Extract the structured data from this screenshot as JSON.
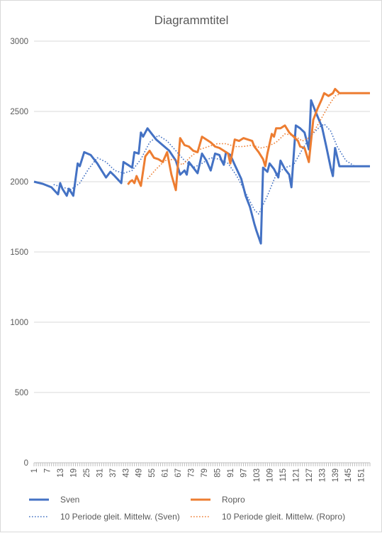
{
  "chart_data": {
    "type": "line",
    "title": "Diagrammtitel",
    "ylim": [
      0,
      3000
    ],
    "yticks": [
      0,
      500,
      1000,
      1500,
      2000,
      2500,
      3000
    ],
    "x_tick_labels": [
      "1",
      "7",
      "13",
      "19",
      "25",
      "31",
      "37",
      "43",
      "49",
      "55",
      "61",
      "67",
      "73",
      "79",
      "85",
      "91",
      "97",
      "103",
      "109",
      "115",
      "121",
      "127",
      "133",
      "139",
      "145",
      "151"
    ],
    "grid": true,
    "legend_position": "bottom",
    "series": [
      {
        "name": "Sven",
        "color": "#4472c4",
        "style": "solid",
        "points": [
          [
            1,
            2000
          ],
          [
            5,
            1985
          ],
          [
            9,
            1960
          ],
          [
            12,
            1910
          ],
          [
            13,
            1990
          ],
          [
            14,
            1950
          ],
          [
            16,
            1900
          ],
          [
            17,
            1950
          ],
          [
            19,
            1900
          ],
          [
            21,
            2130
          ],
          [
            22,
            2110
          ],
          [
            24,
            2210
          ],
          [
            27,
            2190
          ],
          [
            30,
            2130
          ],
          [
            32,
            2080
          ],
          [
            34,
            2030
          ],
          [
            36,
            2070
          ],
          [
            38,
            2040
          ],
          [
            41,
            1990
          ],
          [
            42,
            2140
          ],
          [
            44,
            2120
          ],
          [
            46,
            2100
          ],
          [
            47,
            2210
          ],
          [
            49,
            2200
          ],
          [
            50,
            2350
          ],
          [
            51,
            2320
          ],
          [
            53,
            2380
          ],
          [
            55,
            2340
          ],
          [
            57,
            2300
          ],
          [
            60,
            2260
          ],
          [
            63,
            2220
          ],
          [
            66,
            2150
          ],
          [
            68,
            2050
          ],
          [
            70,
            2080
          ],
          [
            71,
            2050
          ],
          [
            72,
            2140
          ],
          [
            74,
            2100
          ],
          [
            76,
            2060
          ],
          [
            78,
            2200
          ],
          [
            80,
            2150
          ],
          [
            82,
            2080
          ],
          [
            84,
            2200
          ],
          [
            86,
            2190
          ],
          [
            87,
            2150
          ],
          [
            88,
            2120
          ],
          [
            89,
            2210
          ],
          [
            91,
            2190
          ],
          [
            93,
            2120
          ],
          [
            96,
            2020
          ],
          [
            98,
            1900
          ],
          [
            100,
            1820
          ],
          [
            102,
            1700
          ],
          [
            103,
            1650
          ],
          [
            105,
            1560
          ],
          [
            106,
            2100
          ],
          [
            108,
            2070
          ],
          [
            109,
            2130
          ],
          [
            111,
            2090
          ],
          [
            113,
            2030
          ],
          [
            114,
            2150
          ],
          [
            116,
            2090
          ],
          [
            118,
            2050
          ],
          [
            119,
            1960
          ],
          [
            121,
            2400
          ],
          [
            123,
            2380
          ],
          [
            125,
            2350
          ],
          [
            127,
            2230
          ],
          [
            128,
            2580
          ],
          [
            130,
            2500
          ],
          [
            133,
            2390
          ],
          [
            135,
            2250
          ],
          [
            137,
            2100
          ],
          [
            138,
            2040
          ],
          [
            139,
            2240
          ],
          [
            141,
            2110
          ],
          [
            145,
            2110
          ],
          [
            150,
            2110
          ],
          [
            155,
            2110
          ]
        ]
      },
      {
        "name": "Ropro",
        "color": "#ed7d31",
        "style": "solid",
        "points": [
          [
            44,
            1980
          ],
          [
            45,
            2000
          ],
          [
            46,
            2010
          ],
          [
            47,
            1990
          ],
          [
            48,
            2040
          ],
          [
            50,
            1970
          ],
          [
            52,
            2180
          ],
          [
            54,
            2220
          ],
          [
            56,
            2170
          ],
          [
            58,
            2160
          ],
          [
            60,
            2140
          ],
          [
            62,
            2210
          ],
          [
            64,
            2050
          ],
          [
            66,
            1940
          ],
          [
            68,
            2310
          ],
          [
            70,
            2260
          ],
          [
            72,
            2250
          ],
          [
            74,
            2220
          ],
          [
            76,
            2210
          ],
          [
            78,
            2320
          ],
          [
            80,
            2300
          ],
          [
            82,
            2280
          ],
          [
            84,
            2250
          ],
          [
            86,
            2240
          ],
          [
            88,
            2220
          ],
          [
            90,
            2200
          ],
          [
            91,
            2130
          ],
          [
            93,
            2300
          ],
          [
            95,
            2290
          ],
          [
            97,
            2310
          ],
          [
            99,
            2300
          ],
          [
            101,
            2290
          ],
          [
            102,
            2250
          ],
          [
            104,
            2210
          ],
          [
            106,
            2160
          ],
          [
            107,
            2110
          ],
          [
            108,
            2200
          ],
          [
            110,
            2340
          ],
          [
            111,
            2320
          ],
          [
            112,
            2380
          ],
          [
            114,
            2380
          ],
          [
            116,
            2400
          ],
          [
            118,
            2350
          ],
          [
            120,
            2320
          ],
          [
            122,
            2290
          ],
          [
            123,
            2250
          ],
          [
            125,
            2240
          ],
          [
            127,
            2140
          ],
          [
            129,
            2440
          ],
          [
            131,
            2520
          ],
          [
            133,
            2590
          ],
          [
            134,
            2630
          ],
          [
            136,
            2610
          ],
          [
            138,
            2630
          ],
          [
            139,
            2660
          ],
          [
            141,
            2630
          ],
          [
            145,
            2630
          ],
          [
            155,
            2630
          ]
        ]
      },
      {
        "name": "10 Periode gleit. Mittelw. (Sven)",
        "color": "#4472c4",
        "style": "dotted",
        "points": [
          [
            10,
            1980
          ],
          [
            14,
            1960
          ],
          [
            18,
            1945
          ],
          [
            22,
            1990
          ],
          [
            26,
            2090
          ],
          [
            30,
            2170
          ],
          [
            34,
            2140
          ],
          [
            38,
            2080
          ],
          [
            42,
            2060
          ],
          [
            46,
            2080
          ],
          [
            50,
            2160
          ],
          [
            54,
            2280
          ],
          [
            58,
            2330
          ],
          [
            62,
            2290
          ],
          [
            66,
            2220
          ],
          [
            70,
            2150
          ],
          [
            74,
            2100
          ],
          [
            78,
            2130
          ],
          [
            82,
            2170
          ],
          [
            86,
            2160
          ],
          [
            90,
            2130
          ],
          [
            94,
            2040
          ],
          [
            98,
            1920
          ],
          [
            102,
            1800
          ],
          [
            104,
            1770
          ],
          [
            108,
            1900
          ],
          [
            112,
            2050
          ],
          [
            116,
            2100
          ],
          [
            120,
            2120
          ],
          [
            124,
            2230
          ],
          [
            128,
            2330
          ],
          [
            132,
            2390
          ],
          [
            134,
            2410
          ],
          [
            137,
            2360
          ],
          [
            140,
            2250
          ],
          [
            144,
            2150
          ],
          [
            148,
            2110
          ],
          [
            152,
            2110
          ]
        ]
      },
      {
        "name": "10 Periode gleit. Mittelw. (Ropro)",
        "color": "#ed7d31",
        "style": "dotted",
        "points": [
          [
            53,
            2020
          ],
          [
            57,
            2090
          ],
          [
            61,
            2150
          ],
          [
            65,
            2160
          ],
          [
            69,
            2120
          ],
          [
            73,
            2180
          ],
          [
            77,
            2230
          ],
          [
            81,
            2250
          ],
          [
            85,
            2270
          ],
          [
            89,
            2270
          ],
          [
            93,
            2250
          ],
          [
            97,
            2250
          ],
          [
            101,
            2260
          ],
          [
            105,
            2240
          ],
          [
            108,
            2250
          ],
          [
            112,
            2280
          ],
          [
            116,
            2340
          ],
          [
            120,
            2330
          ],
          [
            124,
            2290
          ],
          [
            128,
            2320
          ],
          [
            132,
            2430
          ],
          [
            136,
            2540
          ],
          [
            139,
            2610
          ],
          [
            142,
            2630
          ],
          [
            148,
            2630
          ],
          [
            155,
            2630
          ]
        ]
      }
    ]
  }
}
